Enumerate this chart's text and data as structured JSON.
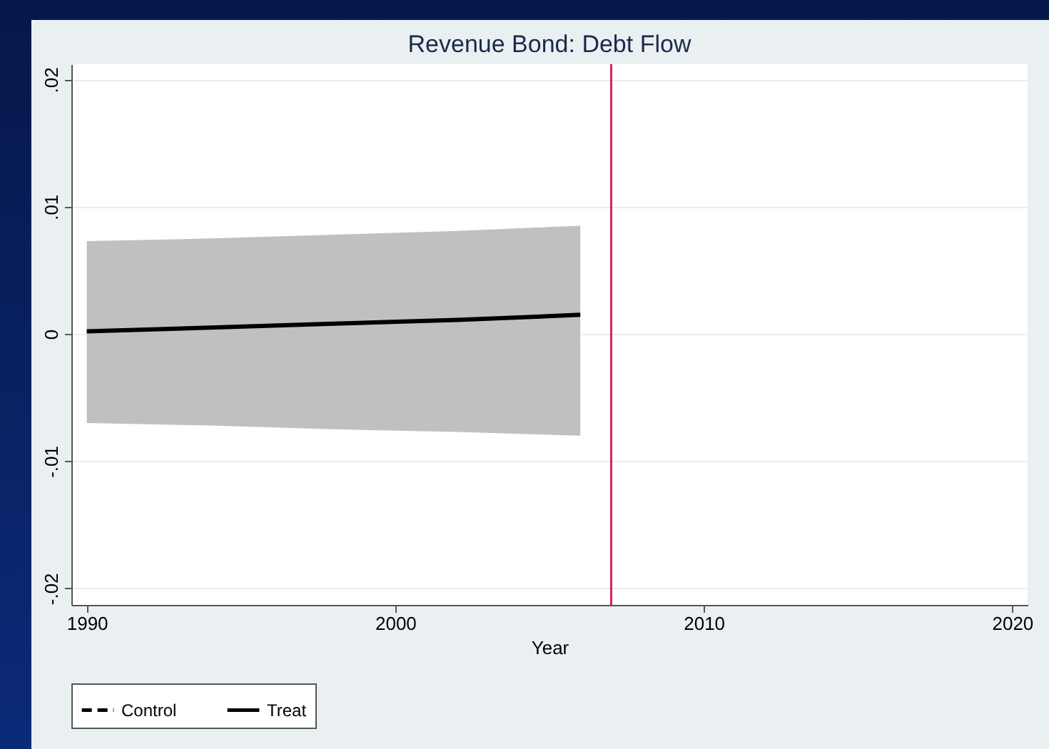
{
  "chart_data": {
    "type": "line",
    "title": "Revenue Bond: Debt Flow",
    "xlabel": "Year",
    "x": [
      1990,
      1994,
      1998,
      2002,
      2006
    ],
    "series": [
      {
        "name": "Control",
        "color": "#000000",
        "line_style": "dashed",
        "values": [
          null,
          null,
          null,
          null,
          null
        ]
      },
      {
        "name": "Treat",
        "color": "#000000",
        "line_style": "solid",
        "values": [
          0.0002,
          0.0005,
          0.0008,
          0.0011,
          0.0015
        ],
        "lower": [
          -0.007,
          -0.0072,
          -0.0075,
          -0.0077,
          -0.008
        ],
        "upper": [
          0.0073,
          0.0075,
          0.0078,
          0.0081,
          0.0085
        ]
      }
    ],
    "xlim": [
      1989.5,
      2020.5
    ],
    "xticks": [
      1990,
      2000,
      2010,
      2020
    ],
    "ylim": [
      -0.0213,
      0.0212
    ],
    "yticks": [
      {
        "value": -0.02,
        "label": "-.02"
      },
      {
        "value": -0.01,
        "label": "-.01"
      },
      {
        "value": 0,
        "label": "0"
      },
      {
        "value": 0.01,
        "label": ".01"
      },
      {
        "value": 0.02,
        "label": ".02"
      }
    ],
    "ref_lines": [
      {
        "axis": "x",
        "value": 2007,
        "color": "#d2245a"
      }
    ],
    "grid": "y",
    "legend": "bottom",
    "marker": "none"
  }
}
